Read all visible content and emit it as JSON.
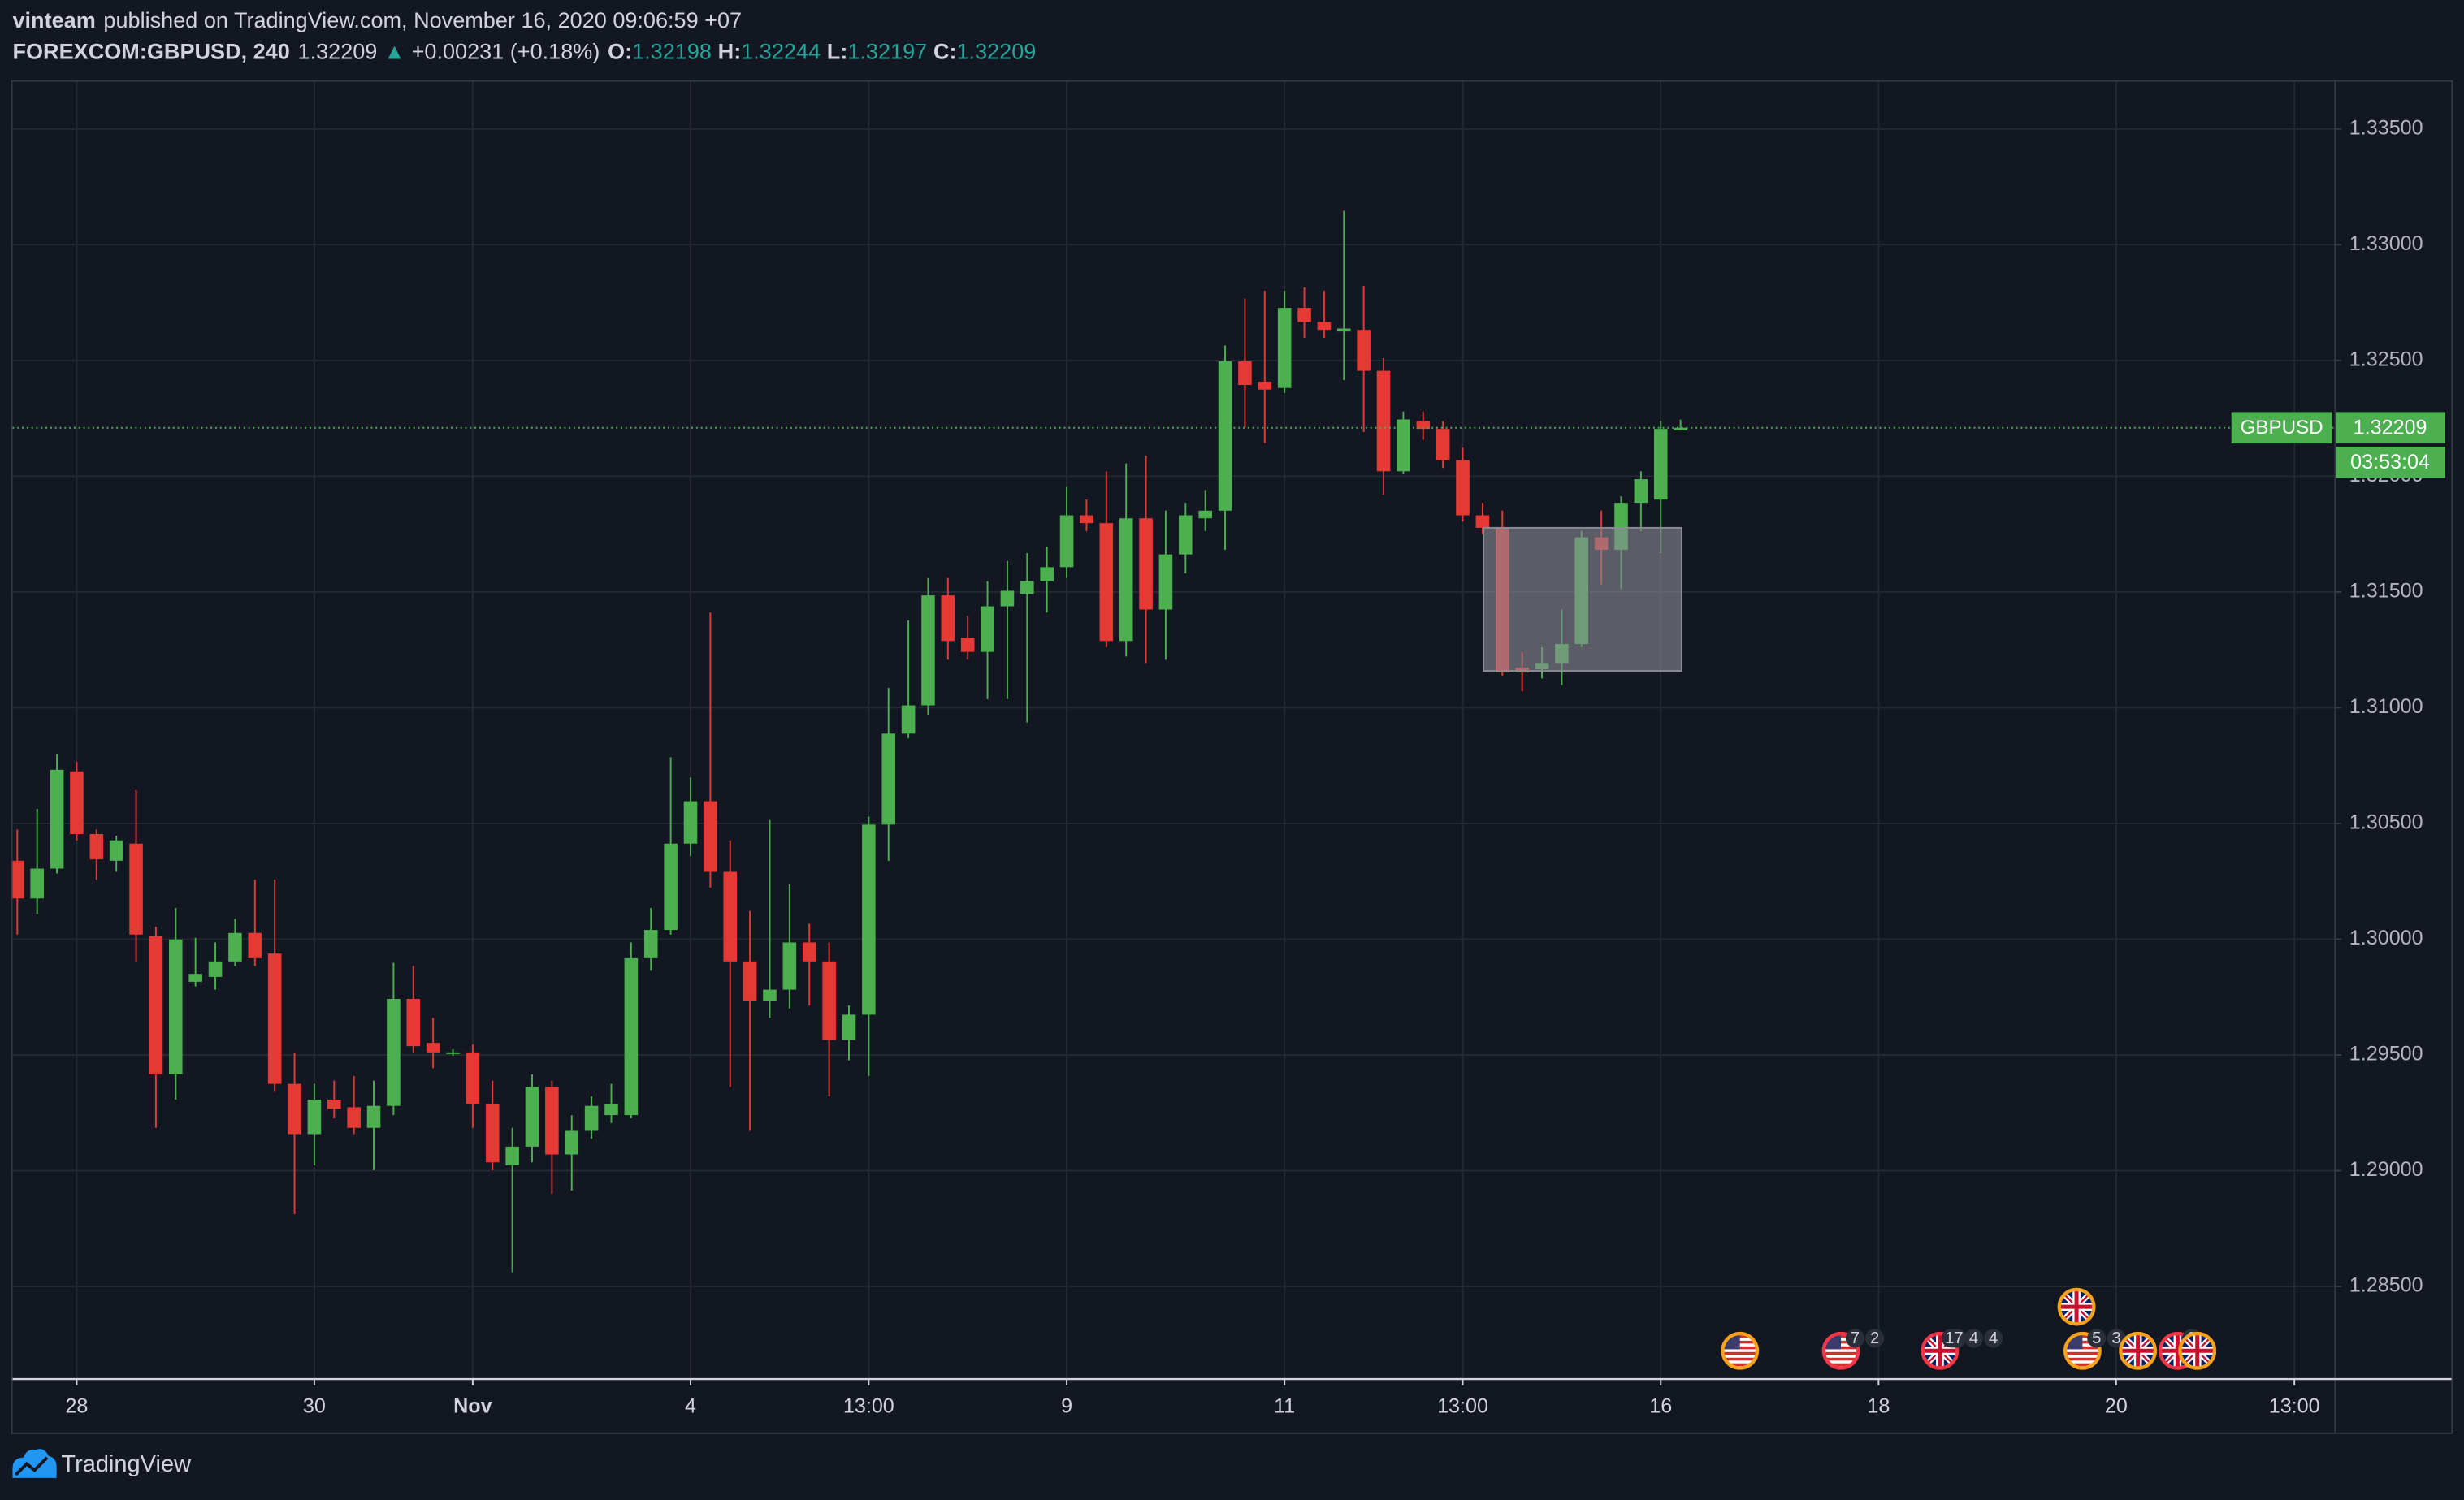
{
  "header": {
    "author": "vinteam",
    "published": "published on TradingView.com, November 16, 2020 09:06:59 +07",
    "symbol": "FOREXCOM:GBPUSD, 240",
    "change_arrow": "▲",
    "change": "+0.00231 (+0.18%)",
    "open_label": "O:",
    "high_label": "H:",
    "low_label": "L:",
    "close_label": "C:"
  },
  "chart_data": {
    "type": "candlestick",
    "symbol_label": "GBPUSD",
    "countdown": "03:53:04",
    "up_color": "#4caf50",
    "down_color": "#e53935",
    "grid": true,
    "last_price_line": true,
    "open": [
      1.30339,
      1.30176,
      1.30305,
      1.30725,
      1.30454,
      1.30339,
      1.30413,
      1.30013,
      1.29416,
      1.29816,
      1.29837,
      1.29904,
      1.30027,
      1.29938,
      1.29375,
      1.29158,
      1.29307,
      1.29274,
      1.29185,
      1.2928,
      1.29742,
      1.29552,
      1.29504,
      1.29511,
      1.29287,
      1.29023,
      1.29104,
      1.29362,
      1.2907,
      1.29172,
      1.2924,
      1.2924,
      1.29918,
      1.3004,
      1.30413,
      1.30596,
      1.30291,
      1.29904,
      1.29735,
      1.29782,
      1.29986,
      1.29904,
      1.29565,
      1.29674,
      1.30495,
      1.30888,
      1.3101,
      1.31485,
      1.31302,
      1.31241,
      1.31438,
      1.31492,
      1.31546,
      1.31607,
      1.31831,
      1.31797,
      1.31288,
      1.31818,
      1.31424,
      1.31662,
      1.31818,
      1.31851,
      1.32496,
      1.32408,
      1.32381,
      1.32727,
      1.32666,
      1.32625,
      1.32632,
      1.32455,
      1.32021,
      1.32238,
      1.32204,
      1.32069,
      1.31831,
      1.31777,
      1.31173,
      1.31166,
      1.31193,
      1.31275,
      1.31736,
      1.31682,
      1.31885,
      1.31899,
      1.32198
    ],
    "high": [
      1.30474,
      1.30563,
      1.308,
      1.30766,
      1.30474,
      1.30447,
      1.30644,
      1.30054,
      1.30135,
      1.30006,
      1.29986,
      1.30088,
      1.30257,
      1.30257,
      1.29511,
      1.29375,
      1.29389,
      1.29409,
      1.29389,
      1.29898,
      1.29884,
      1.2966,
      1.29525,
      1.29545,
      1.29389,
      1.29185,
      1.29416,
      1.29389,
      1.2924,
      1.29321,
      1.29375,
      1.29986,
      1.30135,
      1.30786,
      1.30698,
      1.31411,
      1.30427,
      1.30122,
      1.30515,
      1.30237,
      1.30067,
      1.29986,
      1.29714,
      1.30529,
      1.31085,
      1.31377,
      1.3156,
      1.3156,
      1.31397,
      1.31546,
      1.31634,
      1.31668,
      1.31695,
      1.31953,
      1.31899,
      1.32021,
      1.32055,
      1.32089,
      1.31851,
      1.31885,
      1.3194,
      1.32564,
      1.32767,
      1.32801,
      1.32801,
      1.32815,
      1.32801,
      1.33147,
      1.32822,
      1.3251,
      1.32279,
      1.32279,
      1.32238,
      1.32123,
      1.31885,
      1.31851,
      1.31241,
      1.31261,
      1.31424,
      1.31763,
      1.31851,
      1.31913,
      1.32021,
      1.32238,
      1.32244
    ],
    "low": [
      1.3002,
      1.30108,
      1.30284,
      1.30427,
      1.30257,
      1.30291,
      1.29904,
      1.29185,
      1.29307,
      1.29796,
      1.29782,
      1.29884,
      1.29884,
      1.29341,
      1.28812,
      1.29023,
      1.29226,
      1.29158,
      1.29002,
      1.2924,
      1.29511,
      1.29443,
      1.29497,
      1.29185,
      1.29002,
      1.28561,
      1.29036,
      1.289,
      1.28914,
      1.29138,
      1.29206,
      1.29226,
      1.29864,
      1.3002,
      1.30359,
      1.30223,
      1.29362,
      1.29172,
      1.2966,
      1.29701,
      1.29714,
      1.29321,
      1.29477,
      1.29409,
      1.30339,
      1.30868,
      1.3097,
      1.31207,
      1.31207,
      1.31037,
      1.31037,
      1.30936,
      1.31411,
      1.3156,
      1.31763,
      1.31261,
      1.31221,
      1.31193,
      1.31207,
      1.3158,
      1.31763,
      1.31682,
      1.32211,
      1.32143,
      1.3236,
      1.32598,
      1.32598,
      1.32415,
      1.32191,
      1.31919,
      1.32008,
      1.32157,
      1.32035,
      1.31804,
      1.3175,
      1.31139,
      1.31071,
      1.31126,
      1.31098,
      1.31261,
      1.31533,
      1.31512,
      1.31763,
      1.31668,
      1.32197
    ],
    "close": [
      1.30176,
      1.30305,
      1.30732,
      1.30454,
      1.30345,
      1.30427,
      1.3002,
      1.29416,
      1.29999,
      1.2985,
      1.29904,
      1.30027,
      1.29918,
      1.29375,
      1.29158,
      1.29307,
      1.29267,
      1.29185,
      1.2928,
      1.29742,
      1.29538,
      1.29511,
      1.29511,
      1.29287,
      1.29036,
      1.29104,
      1.29362,
      1.2907,
      1.29172,
      1.2928,
      1.29287,
      1.29918,
      1.3004,
      1.30413,
      1.30596,
      1.30291,
      1.29904,
      1.29735,
      1.29782,
      1.29986,
      1.29904,
      1.29565,
      1.29674,
      1.30495,
      1.30888,
      1.3101,
      1.31485,
      1.31288,
      1.31241,
      1.31438,
      1.31505,
      1.31546,
      1.31607,
      1.31831,
      1.31797,
      1.31288,
      1.31818,
      1.31424,
      1.31662,
      1.31831,
      1.31851,
      1.32496,
      1.32394,
      1.32374,
      1.32727,
      1.32666,
      1.32632,
      1.32638,
      1.32455,
      1.32021,
      1.32245,
      1.32204,
      1.32069,
      1.31831,
      1.31777,
      1.31153,
      1.31153,
      1.31193,
      1.31275,
      1.31736,
      1.31682,
      1.31885,
      1.31987,
      1.32204,
      1.32209
    ],
    "xlim": [
      -0.24,
      117.06
    ],
    "xticks": [
      {
        "value": 3,
        "label": "28"
      },
      {
        "value": 15,
        "label": "30"
      },
      {
        "value": 23,
        "label": "Nov"
      },
      {
        "value": 34,
        "label": "4"
      },
      {
        "value": 43,
        "label": "13:00"
      },
      {
        "value": 53,
        "label": "9"
      },
      {
        "value": 64,
        "label": "11"
      },
      {
        "value": 73,
        "label": "13:00"
      },
      {
        "value": 83,
        "label": "16"
      },
      {
        "value": 94,
        "label": "18"
      },
      {
        "value": 106,
        "label": "20"
      },
      {
        "value": 115,
        "label": "13:00"
      }
    ],
    "ylim": [
      1.281,
      1.33704
    ],
    "yticks": [
      {
        "value": 1.335,
        "label": "1.33500"
      },
      {
        "value": 1.33,
        "label": "1.33000"
      },
      {
        "value": 1.325,
        "label": "1.32500"
      },
      {
        "value": 1.32,
        "label": "1.32000"
      },
      {
        "value": 1.315,
        "label": "1.31500"
      },
      {
        "value": 1.31,
        "label": "1.31000"
      },
      {
        "value": 1.305,
        "label": "1.30500"
      },
      {
        "value": 1.3,
        "label": "1.30000"
      },
      {
        "value": 1.295,
        "label": "1.29500"
      },
      {
        "value": 1.29,
        "label": "1.29000"
      },
      {
        "value": 1.285,
        "label": "1.28500"
      }
    ],
    "highlight_box": {
      "x": [
        74.05,
        84.05
      ],
      "y": [
        1.31159,
        1.31777
      ],
      "color": "#8a8c94"
    },
    "events": [
      {
        "x": 87.0,
        "flag": "us",
        "ring": "#f7a21b",
        "badges": []
      },
      {
        "x": 92.1,
        "flag": "us",
        "ring": "#f23645",
        "badges": [
          7,
          2
        ]
      },
      {
        "x": 97.1,
        "flag": "gb",
        "ring": "#f23645",
        "badges": [
          17,
          4,
          4
        ]
      },
      {
        "x": 104.3,
        "flag": "us",
        "ring": "#f7a21b",
        "badges": [
          5,
          3
        ]
      },
      {
        "x": 104.0,
        "flag": "gb",
        "ring": "#f7a21b",
        "badges": []
      },
      {
        "x": 107.1,
        "flag": "gb",
        "ring": "#f7a21b",
        "badges": []
      },
      {
        "x": 109.1,
        "flag": "gb",
        "ring": "#f23645",
        "badges": [
          2
        ]
      },
      {
        "x": 110.1,
        "flag": "gb",
        "ring": "#f7a21b",
        "badges": []
      }
    ]
  },
  "footer": {
    "brand": "TradingView"
  }
}
